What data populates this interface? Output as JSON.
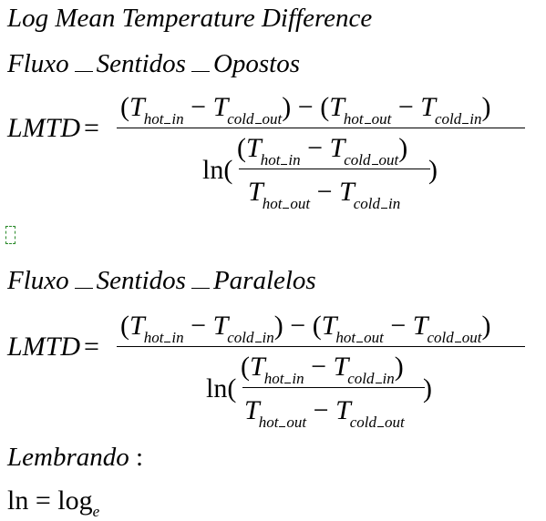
{
  "title": "Log Mean Temperature Difference",
  "section1": {
    "heading_a": "Fluxo",
    "heading_b": "Sentidos",
    "heading_c": "Opostos"
  },
  "section2": {
    "heading_a": "Fluxo",
    "heading_b": "Sentidos",
    "heading_c": "Paralelos"
  },
  "lhs": "LMTD",
  "equals": "=",
  "T": "T",
  "sub_hot_in": [
    "hot",
    "in"
  ],
  "sub_cold_out": [
    "cold",
    "out"
  ],
  "sub_hot_out": [
    "hot",
    "out"
  ],
  "sub_cold_in": [
    "cold",
    "in"
  ],
  "ln": "ln",
  "lembrando": "Lembrando",
  "colon": ":",
  "ln_eq": "ln = log",
  "log_sub": "e"
}
